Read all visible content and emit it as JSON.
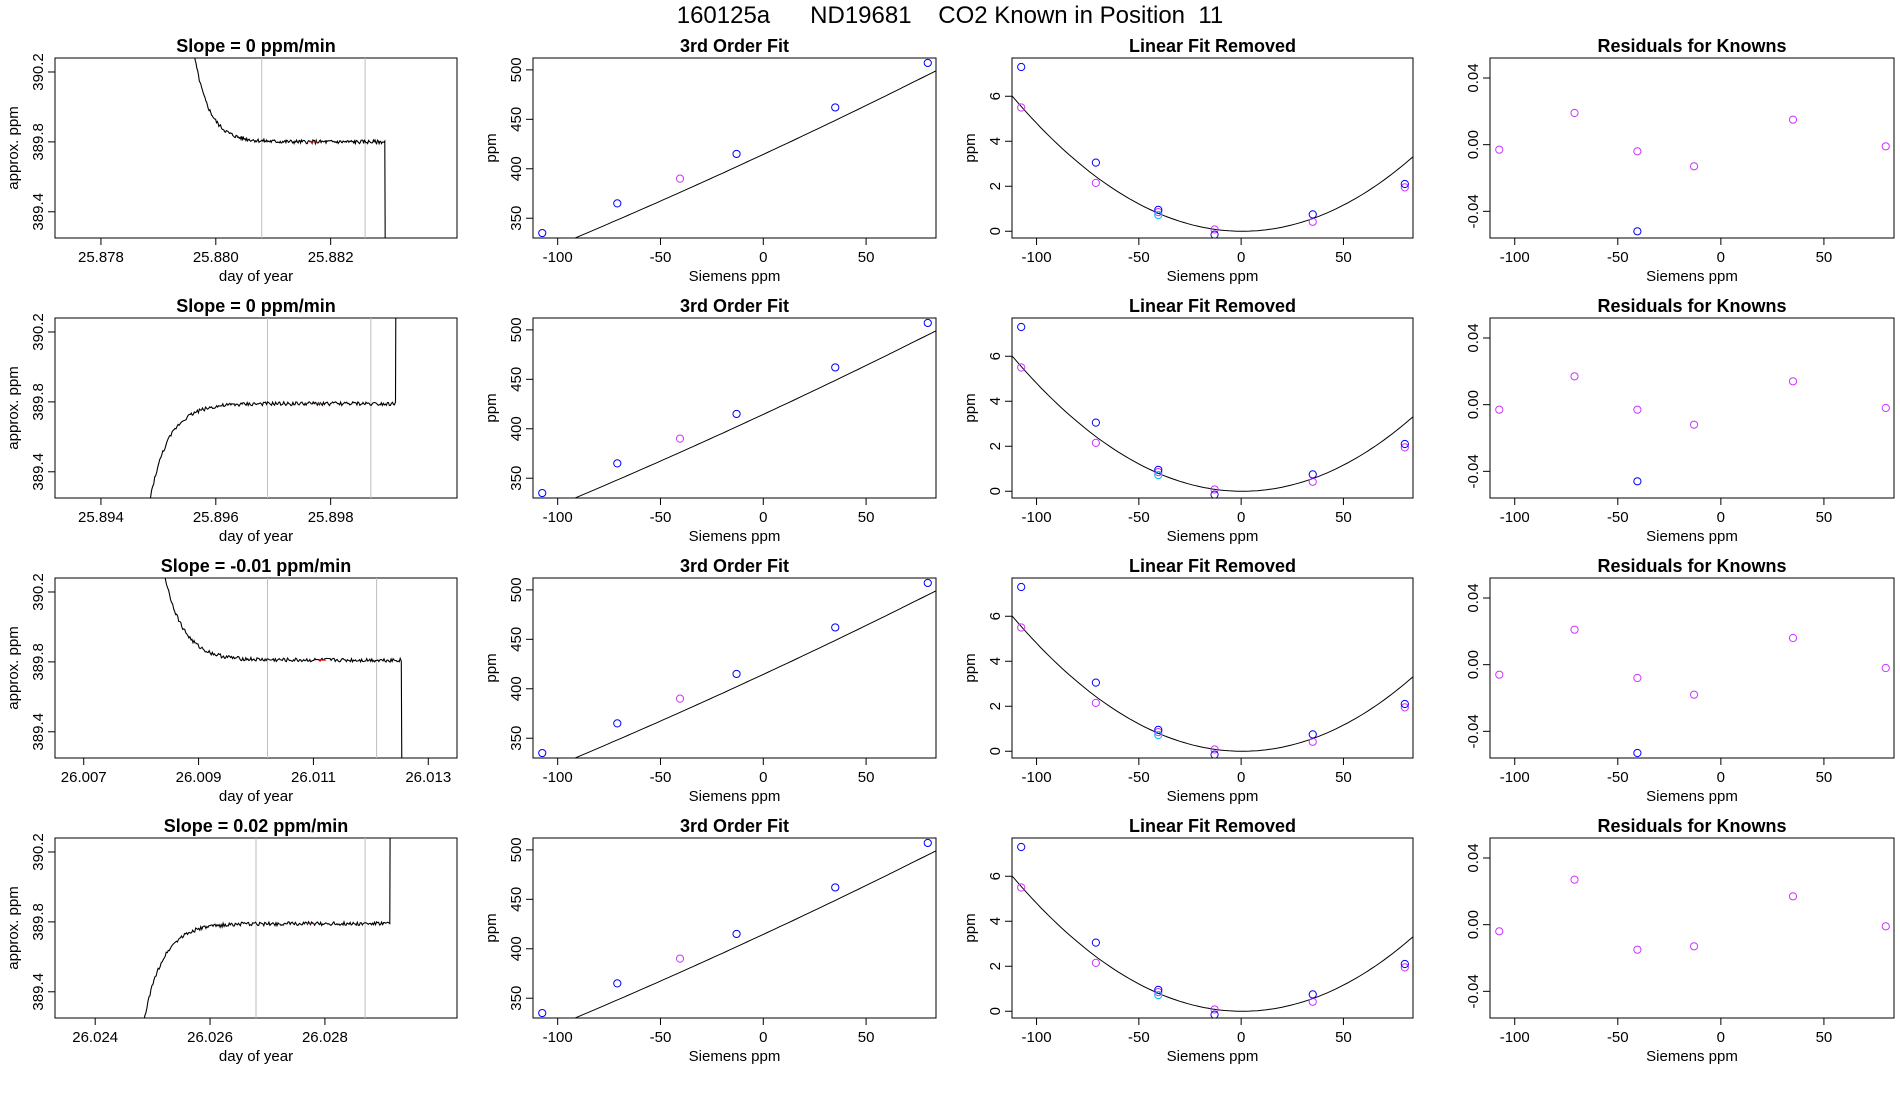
{
  "page_title": "160125a      ND19681    CO2 Known in Position  11",
  "colors": {
    "frame": "#000000",
    "trace": "#000000",
    "vline": "#bebebe",
    "fit_point": "#0000ff",
    "std_point": "#00bfff",
    "resid_point": "#cc33ff",
    "flag": "#ff0000"
  },
  "fit_points": {
    "x": [
      -107.5,
      -71.0,
      -40.5,
      -13.0,
      35.0,
      80.0
    ],
    "y": [
      335,
      365,
      390,
      415,
      462,
      507
    ]
  },
  "linfit_points": {
    "x": [
      -107.5,
      -71.0,
      -40.5,
      -40.5,
      -13.0,
      35.0,
      80.0
    ],
    "y": [
      7.3,
      3.05,
      0.95,
      0.72,
      -0.15,
      0.75,
      2.1
    ]
  },
  "linfit_std": {
    "x": [
      -107.5,
      -71.0,
      -40.5,
      -13.0,
      35.0,
      80.0
    ],
    "y": [
      5.5,
      2.15,
      0.85,
      0.08,
      0.42,
      1.95
    ]
  },
  "chart_data": [
    {
      "type": "line",
      "row": 1,
      "title": "Slope =  0  ppm/min",
      "xlabel": "day of year",
      "ylabel": "approx. ppm",
      "xlim": [
        25.8772,
        25.8842
      ],
      "ylim": [
        389.25,
        390.28
      ],
      "xticks": [
        25.878,
        25.88,
        25.882
      ],
      "xtick_labels": [
        "25.878",
        "25.880",
        "25.882"
      ],
      "yticks": [
        389.4,
        389.8,
        390.2
      ],
      "ytick_labels": [
        "389.4",
        "389.8",
        "390.2"
      ],
      "trace_start": 25.8793,
      "trace_end": 25.883,
      "shape": "down",
      "level": 389.8,
      "vlines": [
        25.8808,
        25.8826
      ]
    },
    {
      "type": "scatter",
      "row": 1,
      "title": "3rd Order Fit",
      "xlabel": "Siemens ppm",
      "ylabel": "ppm",
      "xlim": [
        -112,
        84
      ],
      "ylim": [
        330,
        512
      ],
      "xticks": [
        -100,
        -50,
        0,
        50
      ],
      "xtick_labels": [
        "-100",
        "-50",
        "0",
        "50"
      ],
      "yticks": [
        350,
        400,
        450,
        500
      ],
      "ytick_labels": [
        "350",
        "400",
        "450",
        "500"
      ]
    },
    {
      "type": "scatter",
      "row": 1,
      "title": "Linear Fit Removed",
      "xlabel": "Siemens ppm",
      "ylabel": "ppm",
      "xlim": [
        -112,
        84
      ],
      "ylim": [
        -0.3,
        7.7
      ],
      "xticks": [
        -100,
        -50,
        0,
        50
      ],
      "xtick_labels": [
        "-100",
        "-50",
        "0",
        "50"
      ],
      "yticks": [
        0,
        2,
        4,
        6
      ],
      "ytick_labels": [
        "0",
        "2",
        "4",
        "6"
      ]
    },
    {
      "type": "scatter",
      "row": 1,
      "title": "Residuals for Knowns",
      "xlabel": "Siemens ppm",
      "ylabel": "",
      "xlim": [
        -112,
        84
      ],
      "ylim": [
        -0.056,
        0.052
      ],
      "xticks": [
        -100,
        -50,
        0,
        50
      ],
      "xtick_labels": [
        "-100",
        "-50",
        "0",
        "50"
      ],
      "yticks": [
        -0.04,
        0.0,
        0.04
      ],
      "ytick_labels": [
        "-0.04",
        "0.00",
        "0.04"
      ],
      "x": [
        -107.5,
        -71.0,
        -40.5,
        -13.0,
        35.0,
        80.0
      ],
      "y": [
        -0.003,
        0.019,
        -0.004,
        -0.013,
        0.015,
        -0.001
      ],
      "outlier": {
        "x": -40.5,
        "y": -0.052
      }
    },
    {
      "type": "line",
      "row": 2,
      "title": "Slope =  0  ppm/min",
      "xlabel": "day of year",
      "ylabel": "approx. ppm",
      "xlim": [
        25.8932,
        25.9002
      ],
      "ylim": [
        389.25,
        390.28
      ],
      "xticks": [
        25.894,
        25.896,
        25.898
      ],
      "xtick_labels": [
        "25.894",
        "25.896",
        "25.898"
      ],
      "yticks": [
        389.4,
        389.8,
        390.2
      ],
      "ytick_labels": [
        "389.4",
        "389.8",
        "390.2"
      ],
      "trace_start": 25.8946,
      "trace_end": 25.8992,
      "shape": "up",
      "level": 389.79,
      "vlines": [
        25.8969,
        25.8987
      ]
    },
    {
      "type": "scatter",
      "row": 2,
      "title": "3rd Order Fit",
      "xlabel": "Siemens ppm",
      "ylabel": "ppm",
      "xlim": [
        -112,
        84
      ],
      "ylim": [
        330,
        512
      ],
      "xticks": [
        -100,
        -50,
        0,
        50
      ],
      "xtick_labels": [
        "-100",
        "-50",
        "0",
        "50"
      ],
      "yticks": [
        350,
        400,
        450,
        500
      ],
      "ytick_labels": [
        "350",
        "400",
        "450",
        "500"
      ]
    },
    {
      "type": "scatter",
      "row": 2,
      "title": "Linear Fit Removed",
      "xlabel": "Siemens ppm",
      "ylabel": "ppm",
      "xlim": [
        -112,
        84
      ],
      "ylim": [
        -0.3,
        7.7
      ],
      "xticks": [
        -100,
        -50,
        0,
        50
      ],
      "xtick_labels": [
        "-100",
        "-50",
        "0",
        "50"
      ],
      "yticks": [
        0,
        2,
        4,
        6
      ],
      "ytick_labels": [
        "0",
        "2",
        "4",
        "6"
      ]
    },
    {
      "type": "scatter",
      "row": 2,
      "title": "Residuals for Knowns",
      "xlabel": "Siemens ppm",
      "ylabel": "",
      "xlim": [
        -112,
        84
      ],
      "ylim": [
        -0.056,
        0.052
      ],
      "xticks": [
        -100,
        -50,
        0,
        50
      ],
      "xtick_labels": [
        "-100",
        "-50",
        "0",
        "50"
      ],
      "yticks": [
        -0.04,
        0.0,
        0.04
      ],
      "ytick_labels": [
        "-0.04",
        "0.00",
        "0.04"
      ],
      "x": [
        -107.5,
        -71.0,
        -40.5,
        -13.0,
        35.0,
        80.0
      ],
      "y": [
        -0.003,
        0.017,
        -0.003,
        -0.012,
        0.014,
        -0.002
      ],
      "outlier": {
        "x": -40.5,
        "y": -0.046
      }
    },
    {
      "type": "line",
      "row": 3,
      "title": "Slope =  -0.01  ppm/min",
      "xlabel": "day of year",
      "ylabel": "approx. ppm",
      "xlim": [
        26.0065,
        26.0135
      ],
      "ylim": [
        389.25,
        390.28
      ],
      "xticks": [
        26.007,
        26.009,
        26.011,
        26.013
      ],
      "xtick_labels": [
        "26.007",
        "26.009",
        "26.011",
        "26.013"
      ],
      "yticks": [
        389.4,
        389.8,
        390.2
      ],
      "ytick_labels": [
        "389.4",
        "389.8",
        "390.2"
      ],
      "trace_start": 26.008,
      "trace_end": 26.0126,
      "shape": "down",
      "level": 389.81,
      "vlines": [
        26.0102,
        26.0121
      ]
    },
    {
      "type": "scatter",
      "row": 3,
      "title": "3rd Order Fit",
      "xlabel": "Siemens ppm",
      "ylabel": "ppm",
      "xlim": [
        -112,
        84
      ],
      "ylim": [
        330,
        512
      ],
      "xticks": [
        -100,
        -50,
        0,
        50
      ],
      "xtick_labels": [
        "-100",
        "-50",
        "0",
        "50"
      ],
      "yticks": [
        350,
        400,
        450,
        500
      ],
      "ytick_labels": [
        "350",
        "400",
        "450",
        "500"
      ]
    },
    {
      "type": "scatter",
      "row": 3,
      "title": "Linear Fit Removed",
      "xlabel": "Siemens ppm",
      "ylabel": "ppm",
      "xlim": [
        -112,
        84
      ],
      "ylim": [
        -0.3,
        7.7
      ],
      "xticks": [
        -100,
        -50,
        0,
        50
      ],
      "xtick_labels": [
        "-100",
        "-50",
        "0",
        "50"
      ],
      "yticks": [
        0,
        2,
        4,
        6
      ],
      "ytick_labels": [
        "0",
        "2",
        "4",
        "6"
      ]
    },
    {
      "type": "scatter",
      "row": 3,
      "title": "Residuals for Knowns",
      "xlabel": "Siemens ppm",
      "ylabel": "",
      "xlim": [
        -112,
        84
      ],
      "ylim": [
        -0.056,
        0.052
      ],
      "xticks": [
        -100,
        -50,
        0,
        50
      ],
      "xtick_labels": [
        "-100",
        "-50",
        "0",
        "50"
      ],
      "yticks": [
        -0.04,
        0.0,
        0.04
      ],
      "ytick_labels": [
        "-0.04",
        "0.00",
        "0.04"
      ],
      "x": [
        -107.5,
        -71.0,
        -40.5,
        -13.0,
        35.0,
        80.0
      ],
      "y": [
        -0.006,
        0.021,
        -0.008,
        -0.018,
        0.016,
        -0.002
      ],
      "outlier": {
        "x": -40.5,
        "y": -0.053
      }
    },
    {
      "type": "line",
      "row": 4,
      "title": "Slope =  0.02  ppm/min",
      "xlabel": "day of year",
      "ylabel": "approx. ppm",
      "xlim": [
        26.0233,
        26.0303
      ],
      "ylim": [
        389.25,
        390.28
      ],
      "xticks": [
        26.024,
        26.026,
        26.028
      ],
      "xtick_labels": [
        "26.024",
        "26.026",
        "26.028"
      ],
      "yticks": [
        389.4,
        389.8,
        390.2
      ],
      "ytick_labels": [
        "389.4",
        "389.8",
        "390.2"
      ],
      "trace_start": 26.0246,
      "trace_end": 26.0292,
      "shape": "up",
      "level": 389.79,
      "vlines": [
        26.0268,
        26.0287
      ]
    },
    {
      "type": "scatter",
      "row": 4,
      "title": "3rd Order Fit",
      "xlabel": "Siemens ppm",
      "ylabel": "ppm",
      "xlim": [
        -112,
        84
      ],
      "ylim": [
        330,
        512
      ],
      "xticks": [
        -100,
        -50,
        0,
        50
      ],
      "xtick_labels": [
        "-100",
        "-50",
        "0",
        "50"
      ],
      "yticks": [
        350,
        400,
        450,
        500
      ],
      "ytick_labels": [
        "350",
        "400",
        "450",
        "500"
      ]
    },
    {
      "type": "scatter",
      "row": 4,
      "title": "Linear Fit Removed",
      "xlabel": "Siemens ppm",
      "ylabel": "ppm",
      "xlim": [
        -112,
        84
      ],
      "ylim": [
        -0.3,
        7.7
      ],
      "xticks": [
        -100,
        -50,
        0,
        50
      ],
      "xtick_labels": [
        "-100",
        "-50",
        "0",
        "50"
      ],
      "yticks": [
        0,
        2,
        4,
        6
      ],
      "ytick_labels": [
        "0",
        "2",
        "4",
        "6"
      ]
    },
    {
      "type": "scatter",
      "row": 4,
      "title": "Residuals for Knowns",
      "xlabel": "Siemens ppm",
      "ylabel": "",
      "xlim": [
        -112,
        84
      ],
      "ylim": [
        -0.056,
        0.052
      ],
      "xticks": [
        -100,
        -50,
        0,
        50
      ],
      "xtick_labels": [
        "-100",
        "-50",
        "0",
        "50"
      ],
      "yticks": [
        -0.04,
        0.0,
        0.04
      ],
      "ytick_labels": [
        "-0.04",
        "0.00",
        "0.04"
      ],
      "x": [
        -107.5,
        -71.0,
        -40.5,
        -13.0,
        35.0,
        80.0
      ],
      "y": [
        -0.004,
        0.027,
        -0.015,
        -0.013,
        0.017,
        -0.001
      ],
      "outlier": null
    }
  ]
}
